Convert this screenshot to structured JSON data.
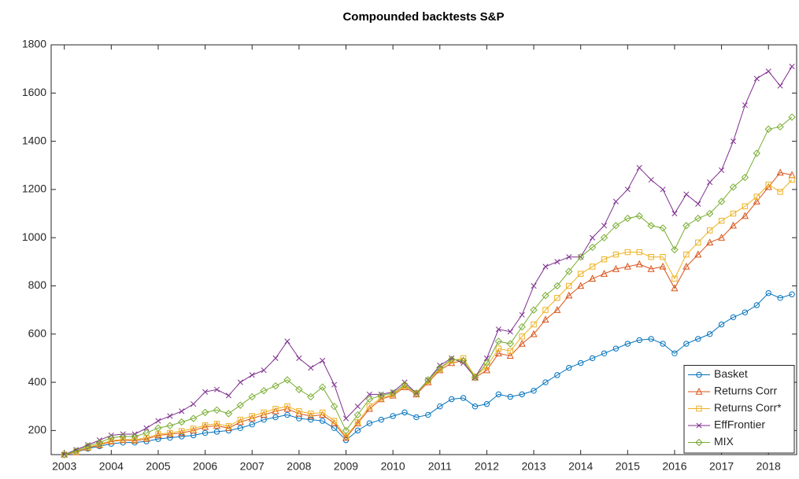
{
  "chart_data": {
    "type": "line",
    "title": "Compounded backtests S&P",
    "x": [
      2003,
      2003.25,
      2003.5,
      2003.75,
      2004,
      2004.25,
      2004.5,
      2004.75,
      2005,
      2005.25,
      2005.5,
      2005.75,
      2006,
      2006.25,
      2006.5,
      2006.75,
      2007,
      2007.25,
      2007.5,
      2007.75,
      2008,
      2008.25,
      2008.5,
      2008.75,
      2009,
      2009.25,
      2009.5,
      2009.75,
      2010,
      2010.25,
      2010.5,
      2010.75,
      2011,
      2011.25,
      2011.5,
      2011.75,
      2012,
      2012.25,
      2012.5,
      2012.75,
      2013,
      2013.25,
      2013.5,
      2013.75,
      2014,
      2014.25,
      2014.5,
      2014.75,
      2015,
      2015.25,
      2015.5,
      2015.75,
      2016,
      2016.25,
      2016.5,
      2016.75,
      2017,
      2017.25,
      2017.5,
      2017.75,
      2018,
      2018.25,
      2018.5
    ],
    "series": [
      {
        "name": "Basket",
        "color": "#0072BD",
        "marker": "circle",
        "values": [
          100,
          110,
          125,
          135,
          145,
          150,
          150,
          155,
          165,
          170,
          175,
          180,
          190,
          195,
          200,
          210,
          225,
          245,
          255,
          265,
          250,
          245,
          240,
          210,
          160,
          200,
          230,
          245,
          260,
          275,
          255,
          265,
          300,
          330,
          335,
          300,
          310,
          350,
          340,
          350,
          365,
          400,
          430,
          460,
          480,
          500,
          520,
          540,
          560,
          575,
          580,
          560,
          520,
          560,
          580,
          600,
          640,
          670,
          690,
          720,
          770,
          750,
          765
        ]
      },
      {
        "name": "Returns Corr",
        "color": "#D95319",
        "marker": "triangle",
        "values": [
          100,
          110,
          128,
          140,
          155,
          160,
          158,
          165,
          180,
          185,
          190,
          200,
          215,
          220,
          210,
          235,
          250,
          265,
          280,
          290,
          270,
          260,
          265,
          230,
          170,
          230,
          290,
          330,
          345,
          380,
          350,
          400,
          450,
          480,
          490,
          420,
          450,
          520,
          510,
          560,
          600,
          660,
          700,
          760,
          800,
          830,
          850,
          870,
          880,
          890,
          870,
          880,
          790,
          880,
          930,
          980,
          1000,
          1050,
          1090,
          1150,
          1210,
          1270,
          1260
        ]
      },
      {
        "name": "Returns Corr*",
        "color": "#EDB120",
        "marker": "square",
        "values": [
          100,
          112,
          130,
          143,
          158,
          163,
          162,
          170,
          185,
          190,
          198,
          208,
          222,
          228,
          218,
          245,
          260,
          275,
          290,
          300,
          280,
          270,
          275,
          240,
          175,
          235,
          300,
          335,
          350,
          385,
          355,
          405,
          455,
          490,
          500,
          425,
          465,
          540,
          530,
          590,
          640,
          700,
          750,
          800,
          850,
          880,
          910,
          930,
          940,
          940,
          920,
          920,
          830,
          930,
          980,
          1030,
          1070,
          1100,
          1130,
          1170,
          1220,
          1190,
          1240
        ]
      },
      {
        "name": "EffFrontier",
        "color": "#7E2F8E",
        "marker": "x",
        "values": [
          100,
          120,
          140,
          160,
          180,
          185,
          185,
          210,
          240,
          260,
          280,
          310,
          360,
          370,
          345,
          400,
          430,
          450,
          500,
          570,
          500,
          460,
          490,
          390,
          250,
          300,
          350,
          350,
          360,
          400,
          355,
          410,
          470,
          500,
          480,
          420,
          500,
          620,
          610,
          680,
          800,
          880,
          900,
          920,
          920,
          1000,
          1050,
          1150,
          1200,
          1290,
          1240,
          1200,
          1100,
          1180,
          1140,
          1230,
          1280,
          1400,
          1550,
          1660,
          1690,
          1630,
          1710
        ]
      },
      {
        "name": "MIX",
        "color": "#77AC30",
        "marker": "diamond",
        "values": [
          100,
          115,
          135,
          150,
          170,
          175,
          175,
          190,
          210,
          220,
          235,
          250,
          275,
          285,
          270,
          305,
          340,
          365,
          385,
          410,
          370,
          340,
          380,
          300,
          200,
          265,
          330,
          345,
          355,
          390,
          355,
          410,
          460,
          495,
          490,
          420,
          480,
          570,
          560,
          630,
          700,
          760,
          800,
          860,
          920,
          960,
          1000,
          1050,
          1080,
          1090,
          1050,
          1040,
          950,
          1050,
          1080,
          1100,
          1150,
          1210,
          1250,
          1350,
          1450,
          1460,
          1500
        ]
      }
    ],
    "xlim": [
      2002.72,
      2018.6
    ],
    "ylim": [
      100,
      1800
    ],
    "xticks": [
      2003,
      2004,
      2005,
      2006,
      2007,
      2008,
      2009,
      2010,
      2011,
      2012,
      2013,
      2014,
      2015,
      2016,
      2017,
      2018
    ],
    "yticks": [
      200,
      400,
      600,
      800,
      1000,
      1200,
      1400,
      1600,
      1800
    ],
    "legend": "southeast"
  }
}
